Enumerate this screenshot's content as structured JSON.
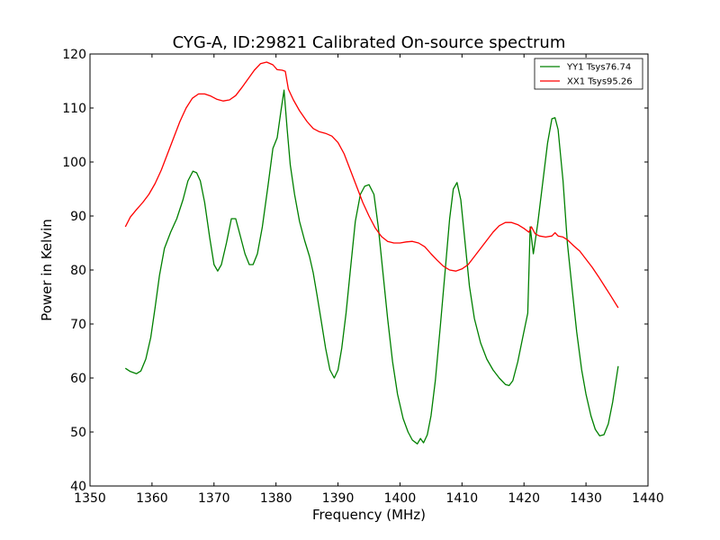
{
  "chart_data": {
    "type": "line",
    "title": "CYG-A, ID:29821 Calibrated On-source spectrum",
    "xlabel": "Frequency (MHz)",
    "ylabel": "Power in Kelvin",
    "xlim": [
      1350,
      1440
    ],
    "ylim": [
      40,
      120
    ],
    "xticks": [
      "1350",
      "1360",
      "1370",
      "1380",
      "1390",
      "1400",
      "1410",
      "1420",
      "1430",
      "1440"
    ],
    "yticks": [
      "40",
      "50",
      "60",
      "70",
      "80",
      "90",
      "100",
      "110",
      "120"
    ],
    "grid": false,
    "legend_position": "top-right",
    "series": [
      {
        "name": "YY1 Tsys76.74",
        "color": "#008000",
        "points": [
          [
            1355.7,
            61.8
          ],
          [
            1356.5,
            61.2
          ],
          [
            1357.5,
            60.8
          ],
          [
            1358.2,
            61.3
          ],
          [
            1359.0,
            63.5
          ],
          [
            1359.8,
            67.5
          ],
          [
            1360.5,
            73.0
          ],
          [
            1361.2,
            79.0
          ],
          [
            1362.0,
            84.0
          ],
          [
            1363.0,
            87.0
          ],
          [
            1364.0,
            89.5
          ],
          [
            1365.0,
            93.0
          ],
          [
            1365.8,
            96.5
          ],
          [
            1366.6,
            98.3
          ],
          [
            1367.2,
            98.0
          ],
          [
            1367.8,
            96.5
          ],
          [
            1368.5,
            92.5
          ],
          [
            1369.3,
            86.0
          ],
          [
            1370.0,
            81.0
          ],
          [
            1370.6,
            79.8
          ],
          [
            1371.2,
            81.0
          ],
          [
            1372.0,
            85.0
          ],
          [
            1372.8,
            89.5
          ],
          [
            1373.5,
            89.5
          ],
          [
            1374.2,
            86.5
          ],
          [
            1375.0,
            83.0
          ],
          [
            1375.7,
            81.0
          ],
          [
            1376.3,
            81.0
          ],
          [
            1377.0,
            83.0
          ],
          [
            1377.8,
            88.0
          ],
          [
            1378.7,
            95.5
          ],
          [
            1379.5,
            102.5
          ],
          [
            1380.2,
            104.5
          ],
          [
            1380.8,
            109.5
          ],
          [
            1381.3,
            113.3
          ],
          [
            1381.8,
            106.0
          ],
          [
            1382.3,
            99.5
          ],
          [
            1383.0,
            94.0
          ],
          [
            1383.8,
            89.0
          ],
          [
            1384.6,
            85.5
          ],
          [
            1385.4,
            82.5
          ],
          [
            1386.0,
            79.5
          ],
          [
            1386.6,
            75.5
          ],
          [
            1387.3,
            70.5
          ],
          [
            1388.0,
            65.5
          ],
          [
            1388.7,
            61.5
          ],
          [
            1389.4,
            60.0
          ],
          [
            1390.0,
            61.5
          ],
          [
            1390.6,
            65.5
          ],
          [
            1391.3,
            72.0
          ],
          [
            1392.0,
            80.0
          ],
          [
            1392.8,
            89.0
          ],
          [
            1393.6,
            94.0
          ],
          [
            1394.3,
            95.5
          ],
          [
            1395.0,
            95.8
          ],
          [
            1395.8,
            94.0
          ],
          [
            1396.5,
            88.0
          ],
          [
            1397.3,
            79.0
          ],
          [
            1398.0,
            71.0
          ],
          [
            1398.8,
            63.0
          ],
          [
            1399.6,
            57.0
          ],
          [
            1400.5,
            52.5
          ],
          [
            1401.3,
            50.0
          ],
          [
            1402.0,
            48.5
          ],
          [
            1402.8,
            47.8
          ],
          [
            1403.3,
            48.8
          ],
          [
            1403.8,
            48.0
          ],
          [
            1404.4,
            49.5
          ],
          [
            1405.0,
            53.0
          ],
          [
            1405.7,
            59.5
          ],
          [
            1406.5,
            69.5
          ],
          [
            1407.3,
            80.0
          ],
          [
            1408.0,
            89.5
          ],
          [
            1408.6,
            95.0
          ],
          [
            1409.2,
            96.2
          ],
          [
            1409.8,
            93.0
          ],
          [
            1410.5,
            85.0
          ],
          [
            1411.2,
            77.0
          ],
          [
            1412.0,
            71.0
          ],
          [
            1413.0,
            66.5
          ],
          [
            1414.0,
            63.5
          ],
          [
            1415.0,
            61.5
          ],
          [
            1416.0,
            60.0
          ],
          [
            1417.0,
            58.8
          ],
          [
            1417.6,
            58.6
          ],
          [
            1418.2,
            59.5
          ],
          [
            1419.0,
            63.0
          ],
          [
            1419.8,
            67.5
          ],
          [
            1420.6,
            72.0
          ],
          [
            1421.0,
            88.0
          ],
          [
            1421.5,
            83.0
          ],
          [
            1422.2,
            88.5
          ],
          [
            1423.0,
            96.0
          ],
          [
            1423.8,
            103.5
          ],
          [
            1424.5,
            108.0
          ],
          [
            1425.0,
            108.2
          ],
          [
            1425.5,
            106.0
          ],
          [
            1426.3,
            96.5
          ],
          [
            1427.0,
            85.0
          ],
          [
            1427.8,
            76.0
          ],
          [
            1428.5,
            68.5
          ],
          [
            1429.3,
            61.5
          ],
          [
            1430.0,
            57.0
          ],
          [
            1430.8,
            53.0
          ],
          [
            1431.5,
            50.5
          ],
          [
            1432.2,
            49.3
          ],
          [
            1432.9,
            49.5
          ],
          [
            1433.6,
            51.5
          ],
          [
            1434.3,
            55.5
          ],
          [
            1435.2,
            62.2
          ]
        ]
      },
      {
        "name": "XX1 Tsys95.26",
        "color": "#ff0000",
        "points": [
          [
            1355.7,
            88.0
          ],
          [
            1356.5,
            89.8
          ],
          [
            1357.5,
            91.2
          ],
          [
            1358.5,
            92.5
          ],
          [
            1359.5,
            94.0
          ],
          [
            1360.5,
            96.0
          ],
          [
            1361.5,
            98.5
          ],
          [
            1362.5,
            101.5
          ],
          [
            1363.5,
            104.5
          ],
          [
            1364.5,
            107.5
          ],
          [
            1365.5,
            110.0
          ],
          [
            1366.5,
            111.8
          ],
          [
            1367.5,
            112.6
          ],
          [
            1368.5,
            112.6
          ],
          [
            1369.5,
            112.2
          ],
          [
            1370.5,
            111.6
          ],
          [
            1371.5,
            111.3
          ],
          [
            1372.5,
            111.5
          ],
          [
            1373.5,
            112.3
          ],
          [
            1374.5,
            113.8
          ],
          [
            1375.5,
            115.4
          ],
          [
            1376.5,
            117.0
          ],
          [
            1377.5,
            118.2
          ],
          [
            1378.5,
            118.5
          ],
          [
            1379.5,
            118.0
          ],
          [
            1380.2,
            117.1
          ],
          [
            1381.0,
            117.0
          ],
          [
            1381.5,
            116.8
          ],
          [
            1382.0,
            113.5
          ],
          [
            1382.8,
            111.5
          ],
          [
            1383.8,
            109.5
          ],
          [
            1385.0,
            107.5
          ],
          [
            1386.0,
            106.2
          ],
          [
            1387.0,
            105.6
          ],
          [
            1388.0,
            105.3
          ],
          [
            1389.0,
            104.8
          ],
          [
            1390.0,
            103.6
          ],
          [
            1391.0,
            101.5
          ],
          [
            1392.0,
            98.5
          ],
          [
            1393.0,
            95.5
          ],
          [
            1394.0,
            92.5
          ],
          [
            1395.0,
            90.0
          ],
          [
            1396.0,
            87.8
          ],
          [
            1397.0,
            86.2
          ],
          [
            1398.0,
            85.3
          ],
          [
            1399.0,
            85.0
          ],
          [
            1400.0,
            85.0
          ],
          [
            1401.0,
            85.2
          ],
          [
            1402.0,
            85.3
          ],
          [
            1403.0,
            85.0
          ],
          [
            1404.0,
            84.3
          ],
          [
            1405.0,
            83.0
          ],
          [
            1406.0,
            81.8
          ],
          [
            1407.0,
            80.7
          ],
          [
            1408.0,
            80.0
          ],
          [
            1409.0,
            79.8
          ],
          [
            1410.0,
            80.2
          ],
          [
            1411.0,
            81.0
          ],
          [
            1412.0,
            82.5
          ],
          [
            1413.0,
            84.0
          ],
          [
            1414.0,
            85.5
          ],
          [
            1415.0,
            87.0
          ],
          [
            1416.0,
            88.2
          ],
          [
            1417.0,
            88.8
          ],
          [
            1418.0,
            88.8
          ],
          [
            1419.0,
            88.4
          ],
          [
            1420.0,
            87.7
          ],
          [
            1420.8,
            87.0
          ],
          [
            1421.2,
            88.0
          ],
          [
            1421.8,
            86.7
          ],
          [
            1422.5,
            86.3
          ],
          [
            1423.5,
            86.1
          ],
          [
            1424.5,
            86.3
          ],
          [
            1425.0,
            86.9
          ],
          [
            1425.5,
            86.3
          ],
          [
            1426.3,
            86.1
          ],
          [
            1427.0,
            85.6
          ],
          [
            1428.0,
            84.5
          ],
          [
            1429.0,
            83.5
          ],
          [
            1430.0,
            82.0
          ],
          [
            1431.0,
            80.5
          ],
          [
            1432.0,
            78.8
          ],
          [
            1433.0,
            77.0
          ],
          [
            1434.0,
            75.2
          ],
          [
            1435.2,
            73.0
          ]
        ]
      }
    ]
  }
}
